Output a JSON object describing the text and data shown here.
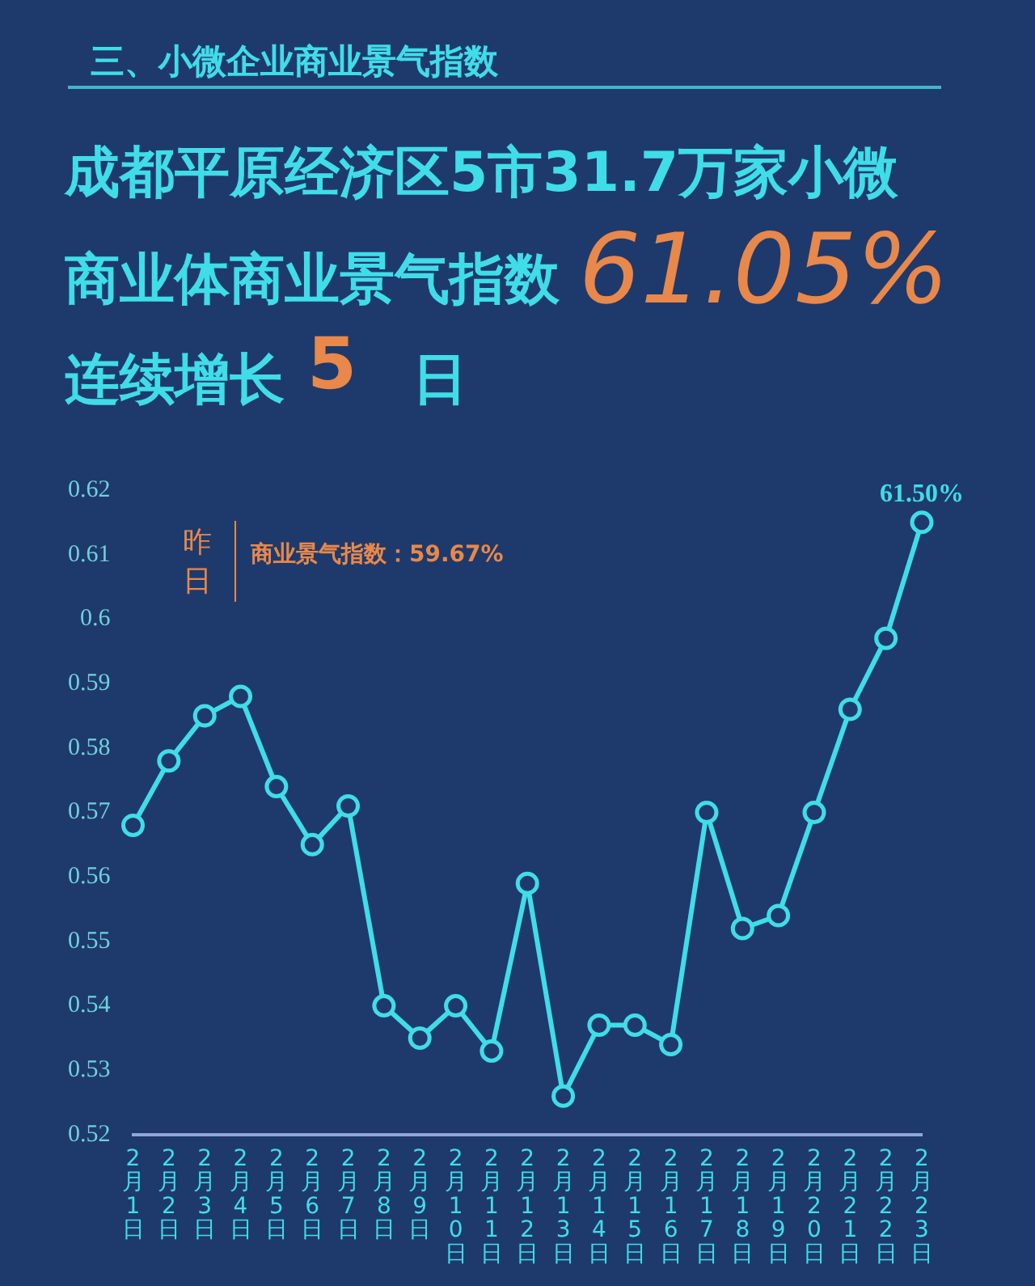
{
  "chart_data": {
    "type": "line",
    "title": "三、小微企业商业景气指数",
    "annotations": [
      "成都平原经济区5市31.7万家小微",
      "商业体商业景气指数",
      "61.05%",
      "连续增长",
      "5",
      "日",
      "昨日",
      "商业景气指数：59.67%"
    ],
    "categories": [
      "2月1日",
      "2月2日",
      "2月3日",
      "2月4日",
      "2月5日",
      "2月6日",
      "2月7日",
      "2月8日",
      "2月9日",
      "2月10日",
      "2月11日",
      "2月12日",
      "2月13日",
      "2月14日",
      "2月15日",
      "2月16日",
      "2月17日",
      "2月18日",
      "2月19日",
      "2月20日",
      "2月21日",
      "2月22日",
      "2月23日"
    ],
    "series": [
      {
        "color": "#3fdde8",
        "values": [
          0.568,
          0.578,
          0.585,
          0.588,
          0.574,
          0.565,
          0.571,
          0.54,
          0.535,
          0.54,
          0.533,
          0.559,
          0.526,
          0.537,
          0.537,
          0.534,
          0.57,
          0.552,
          0.554,
          0.57,
          0.586,
          0.597,
          0.615
        ],
        "value_labels": [
          null,
          null,
          null,
          null,
          null,
          null,
          null,
          null,
          null,
          null,
          null,
          null,
          null,
          null,
          null,
          null,
          null,
          null,
          null,
          null,
          null,
          null,
          "61.50%"
        ]
      }
    ],
    "ylim": [
      0.52,
      0.62
    ],
    "yticks": [
      0.52,
      0.53,
      0.54,
      0.55,
      0.56,
      0.57,
      0.58,
      0.59,
      {
        "value": 0.6,
        "label": "0.6"
      },
      0.61,
      0.62
    ],
    "grid": false,
    "legend": false,
    "marker": "circle",
    "line_style": "solid"
  }
}
